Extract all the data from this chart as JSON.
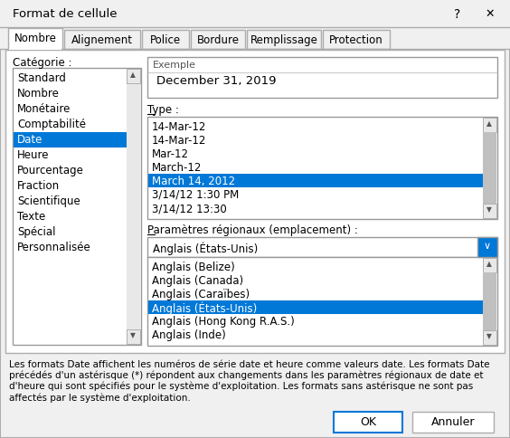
{
  "title": "Format de cellule",
  "bg_color": "#f0f0f0",
  "white": "#ffffff",
  "blue_selected": "#0078d7",
  "tabs": [
    "Nombre",
    "Alignement",
    "Police",
    "Bordure",
    "Remplissage",
    "Protection"
  ],
  "active_tab": "Nombre",
  "categorie_label": "Catégorie :",
  "categorie_items": [
    "Standard",
    "Nombre",
    "Monétaire",
    "Comptabilité",
    "Date",
    "Heure",
    "Pourcentage",
    "Fraction",
    "Scientifique",
    "Texte",
    "Spécial",
    "Personnalisée"
  ],
  "categorie_selected": "Date",
  "exemple_label": "Exemple",
  "exemple_value": "December 31, 2019",
  "type_label": "Type :",
  "type_items": [
    "14-Mar-12",
    "14-Mar-12",
    "Mar-12",
    "March-12",
    "March 14, 2012",
    "3/14/12 1:30 PM",
    "3/14/12 13:30"
  ],
  "type_selected": "March 14, 2012",
  "params_label": "Paramètres régionaux (emplacement) :",
  "params_dropdown_value": "Anglais (États-Unis)",
  "params_list": [
    "Anglais (Belize)",
    "Anglais (Canada)",
    "Anglais (Caraïbes)",
    "Anglais (États-Unis)",
    "Anglais (Hong Kong R.A.S.)",
    "Anglais (Inde)"
  ],
  "params_selected": "Anglais (États-Unis)",
  "footer_text": "Les formats Date affichent les numéros de série date et heure comme valeurs date. Les formats Date\nprécédés d'un astérisque (*) répondent aux changements dans les paramètres régionaux de date et\nd'heure qui sont spécifiés pour le système d'exploitation. Les formats sans astérisque ne sont pas\naffectés par le système d'exploitation.",
  "btn_ok": "OK",
  "btn_cancel": "Annuler",
  "border_color": "#adadad",
  "dark_border": "#999999",
  "tab_border": "#d0d0d0",
  "scrollbar_bg": "#e8e8e8",
  "scrollbar_gray": "#c0c0c0",
  "type_underline_char": "T",
  "cat_underline_char": "C",
  "params_underline_char": "P"
}
